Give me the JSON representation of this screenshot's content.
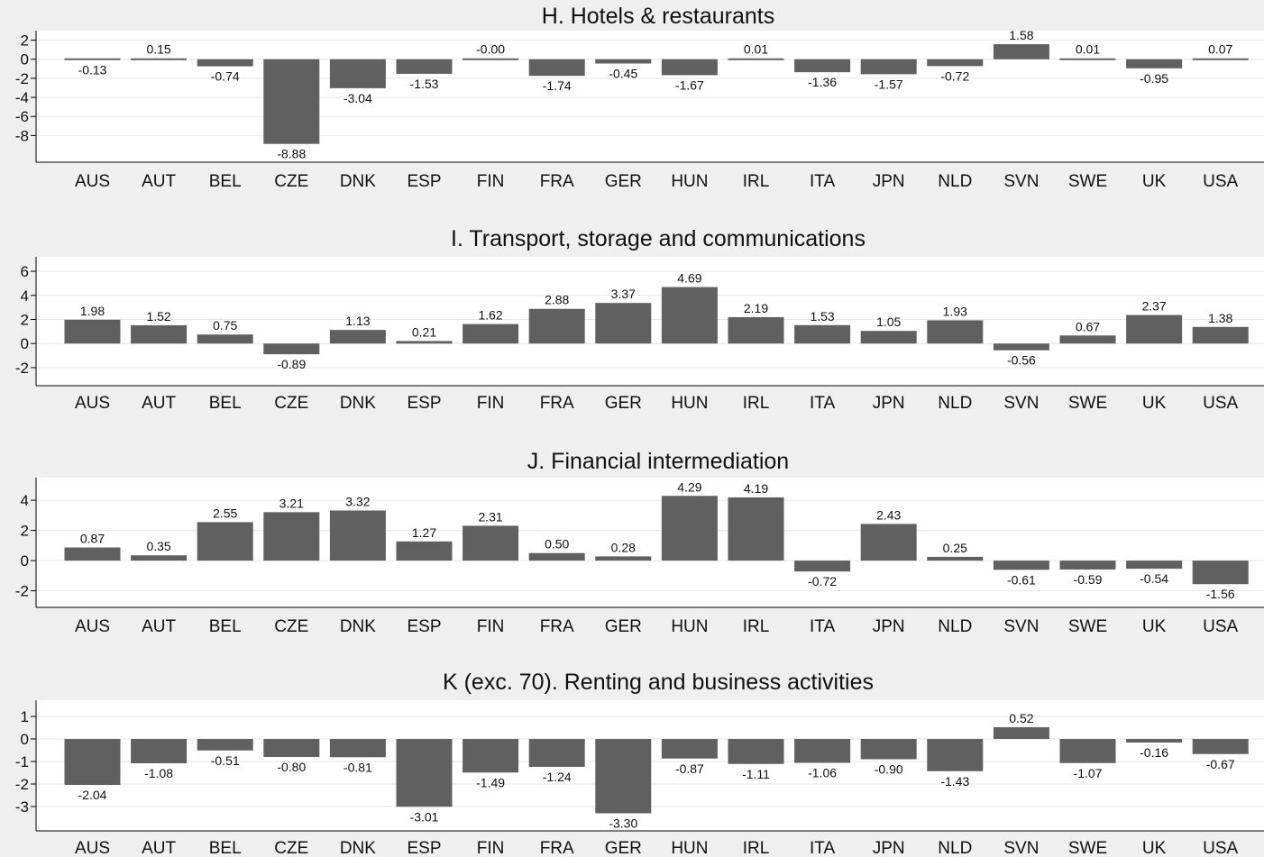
{
  "chart_data": [
    {
      "type": "bar",
      "title": "H. Hotels & restaurants",
      "categories": [
        "AUS",
        "AUT",
        "BEL",
        "CZE",
        "DNK",
        "ESP",
        "FIN",
        "FRA",
        "GER",
        "HUN",
        "IRL",
        "ITA",
        "JPN",
        "NLD",
        "SVN",
        "SWE",
        "UK",
        "USA"
      ],
      "values": [
        -0.13,
        0.15,
        -0.74,
        -8.88,
        -3.04,
        -1.53,
        -0.0,
        -1.74,
        -0.45,
        -1.67,
        0.01,
        -1.36,
        -1.57,
        -0.72,
        1.58,
        0.01,
        -0.95,
        0.07
      ],
      "labels": [
        "-0.13",
        "0.15",
        "-0.74",
        "-8.88",
        "-3.04",
        "-1.53",
        "-0.00",
        "-1.74",
        "-0.45",
        "-1.67",
        "0.01",
        "-1.36",
        "-1.57",
        "-0.72",
        "1.58",
        "0.01",
        "-0.95",
        "0.07"
      ],
      "yticks": [
        "2",
        "0",
        "-2",
        "-4",
        "-6",
        "-8"
      ],
      "ytick_values": [
        2,
        0,
        -2,
        -4,
        -6,
        -8
      ],
      "ylim": [
        -10.8,
        3.0
      ],
      "grid": true,
      "bar_color": "#606060"
    },
    {
      "type": "bar",
      "title": "I. Transport, storage and communications",
      "categories": [
        "AUS",
        "AUT",
        "BEL",
        "CZE",
        "DNK",
        "ESP",
        "FIN",
        "FRA",
        "GER",
        "HUN",
        "IRL",
        "ITA",
        "JPN",
        "NLD",
        "SVN",
        "SWE",
        "UK",
        "USA"
      ],
      "values": [
        1.98,
        1.52,
        0.75,
        -0.89,
        1.13,
        0.21,
        1.62,
        2.88,
        3.37,
        4.69,
        2.19,
        1.53,
        1.05,
        1.93,
        -0.56,
        0.67,
        2.37,
        1.38
      ],
      "labels": [
        "1.98",
        "1.52",
        "0.75",
        "-0.89",
        "1.13",
        "0.21",
        "1.62",
        "2.88",
        "3.37",
        "4.69",
        "2.19",
        "1.53",
        "1.05",
        "1.93",
        "-0.56",
        "0.67",
        "2.37",
        "1.38"
      ],
      "yticks": [
        "6",
        "4",
        "2",
        "0",
        "-2"
      ],
      "ytick_values": [
        6,
        4,
        2,
        0,
        -2
      ],
      "ylim": [
        -3.5,
        7.2
      ],
      "grid": true,
      "bar_color": "#606060"
    },
    {
      "type": "bar",
      "title": "J. Financial intermediation",
      "categories": [
        "AUS",
        "AUT",
        "BEL",
        "CZE",
        "DNK",
        "ESP",
        "FIN",
        "FRA",
        "GER",
        "HUN",
        "IRL",
        "ITA",
        "JPN",
        "NLD",
        "SVN",
        "SWE",
        "UK",
        "USA"
      ],
      "values": [
        0.87,
        0.35,
        2.55,
        3.21,
        3.32,
        1.27,
        2.31,
        0.5,
        0.28,
        4.29,
        4.19,
        -0.72,
        2.43,
        0.25,
        -0.61,
        -0.59,
        -0.54,
        -1.56
      ],
      "labels": [
        "0.87",
        "0.35",
        "2.55",
        "3.21",
        "3.32",
        "1.27",
        "2.31",
        "0.50",
        "0.28",
        "4.29",
        "4.19",
        "-0.72",
        "2.43",
        "0.25",
        "-0.61",
        "-0.59",
        "-0.54",
        "-1.56"
      ],
      "yticks": [
        "4",
        "2",
        "0",
        "-2"
      ],
      "ytick_values": [
        4,
        2,
        0,
        -2
      ],
      "ylim": [
        -3.1,
        5.5
      ],
      "grid": true,
      "bar_color": "#606060"
    },
    {
      "type": "bar",
      "title": "K (exc. 70). Renting and business activities",
      "categories": [
        "AUS",
        "AUT",
        "BEL",
        "CZE",
        "DNK",
        "ESP",
        "FIN",
        "FRA",
        "GER",
        "HUN",
        "IRL",
        "ITA",
        "JPN",
        "NLD",
        "SVN",
        "SWE",
        "UK",
        "USA"
      ],
      "values": [
        -2.04,
        -1.08,
        -0.51,
        -0.8,
        -0.81,
        -3.01,
        -1.49,
        -1.24,
        -3.3,
        -0.87,
        -1.11,
        -1.06,
        -0.9,
        -1.43,
        0.52,
        -1.07,
        -0.16,
        -0.67
      ],
      "labels": [
        "-2.04",
        "-1.08",
        "-0.51",
        "-0.80",
        "-0.81",
        "-3.01",
        "-1.49",
        "-1.24",
        "-3.30",
        "-0.87",
        "-1.11",
        "-1.06",
        "-0.90",
        "-1.43",
        "0.52",
        "-1.07",
        "-0.16",
        "-0.67"
      ],
      "yticks": [
        "1",
        "0",
        "-1",
        "-2",
        "-3"
      ],
      "ytick_values": [
        1,
        0,
        -1,
        -2,
        -3
      ],
      "ylim": [
        -4.08,
        1.72
      ],
      "grid": true,
      "bar_color": "#606060"
    }
  ]
}
